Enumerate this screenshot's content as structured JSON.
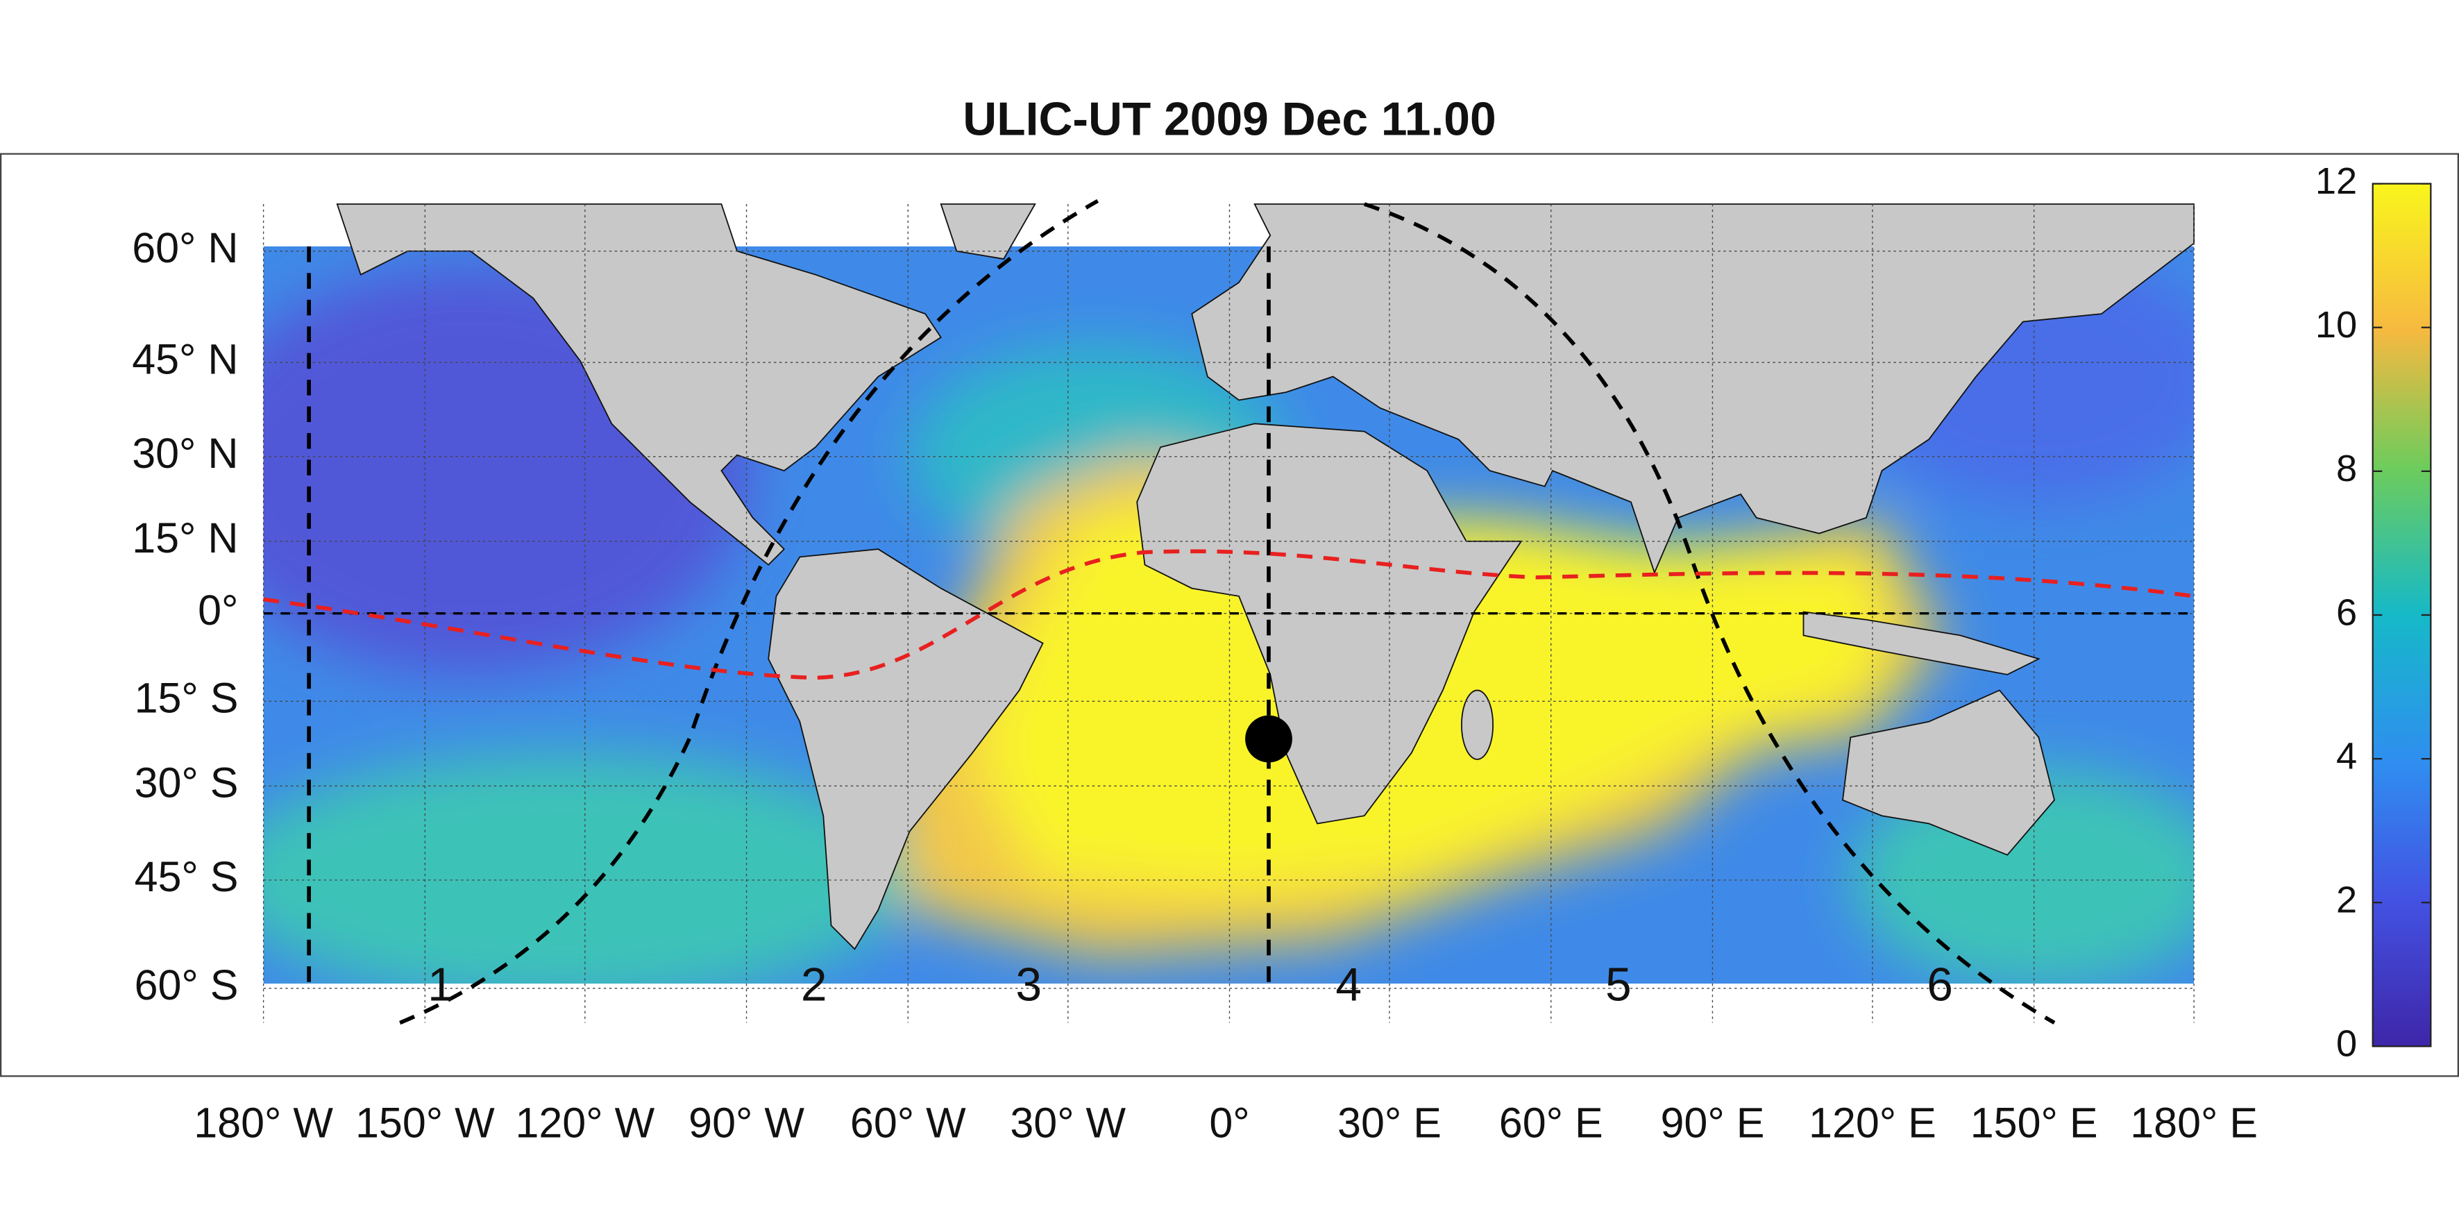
{
  "title": "ULIC-UT 2009 Dec 11.00",
  "map": {
    "lat_labels": [
      "60° N",
      "45° N",
      "30° N",
      "15° N",
      "0°",
      "15° S",
      "30° S",
      "45° S",
      "60° S"
    ],
    "lon_labels": [
      "180° W",
      "150° W",
      "120° W",
      "90° W",
      "60° W",
      "30° W",
      "0°",
      "30° E",
      "60° E",
      "90° E",
      "120° E",
      "150° E",
      "180° E"
    ],
    "zone_labels": [
      "1",
      "2",
      "3",
      "4",
      "5",
      "6"
    ]
  },
  "colorbar": {
    "range": [
      0,
      12
    ],
    "ticks": [
      0,
      2,
      4,
      6,
      8,
      10,
      12
    ]
  }
}
